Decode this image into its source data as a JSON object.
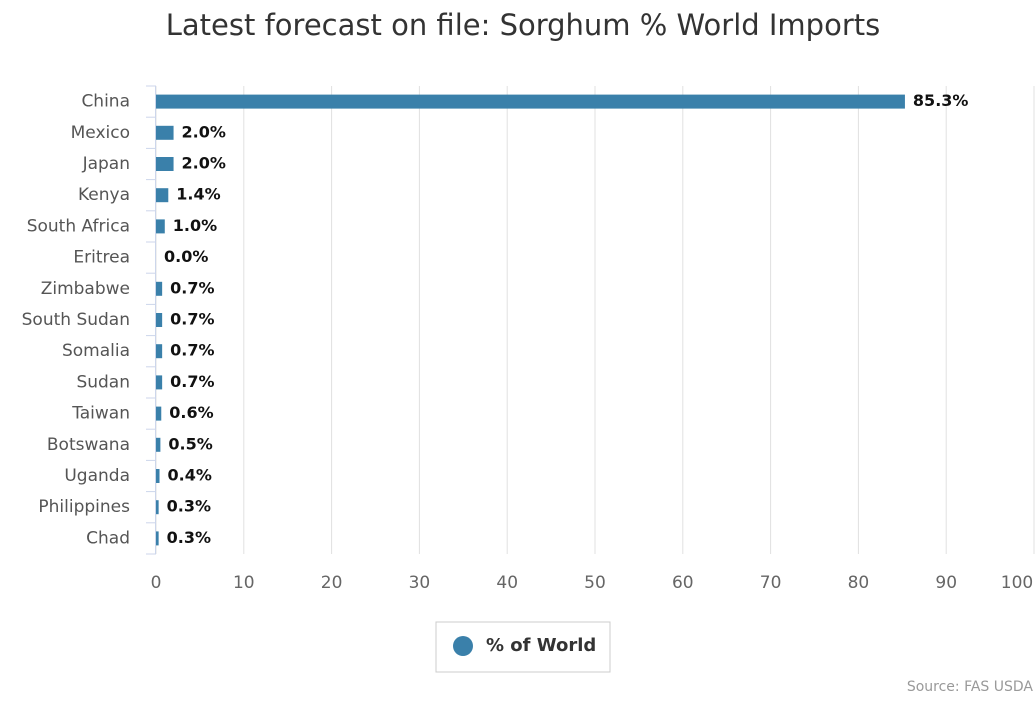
{
  "chart_data": {
    "type": "bar",
    "orientation": "horizontal",
    "title": "Latest forecast on file: Sorghum % World Imports",
    "categories": [
      "China",
      "Mexico",
      "Japan",
      "Kenya",
      "South Africa",
      "Eritrea",
      "Zimbabwe",
      "South Sudan",
      "Somalia",
      "Sudan",
      "Taiwan",
      "Botswana",
      "Uganda",
      "Philippines",
      "Chad"
    ],
    "series": [
      {
        "name": "% of World",
        "color": "#3a80aa",
        "values": [
          85.3,
          2.0,
          2.0,
          1.4,
          1.0,
          0.0,
          0.7,
          0.7,
          0.7,
          0.7,
          0.6,
          0.5,
          0.4,
          0.3,
          0.3
        ],
        "value_labels": [
          "85.3%",
          "2.0%",
          "2.0%",
          "1.4%",
          "1.0%",
          "0.0%",
          "0.7%",
          "0.7%",
          "0.7%",
          "0.7%",
          "0.6%",
          "0.5%",
          "0.4%",
          "0.3%",
          "0.3%"
        ]
      }
    ],
    "xlim": [
      0,
      100
    ],
    "xticks": [
      0,
      10,
      20,
      30,
      40,
      50,
      60,
      70,
      80,
      90,
      100
    ],
    "grid": true,
    "source": "Source: FAS USDA"
  }
}
